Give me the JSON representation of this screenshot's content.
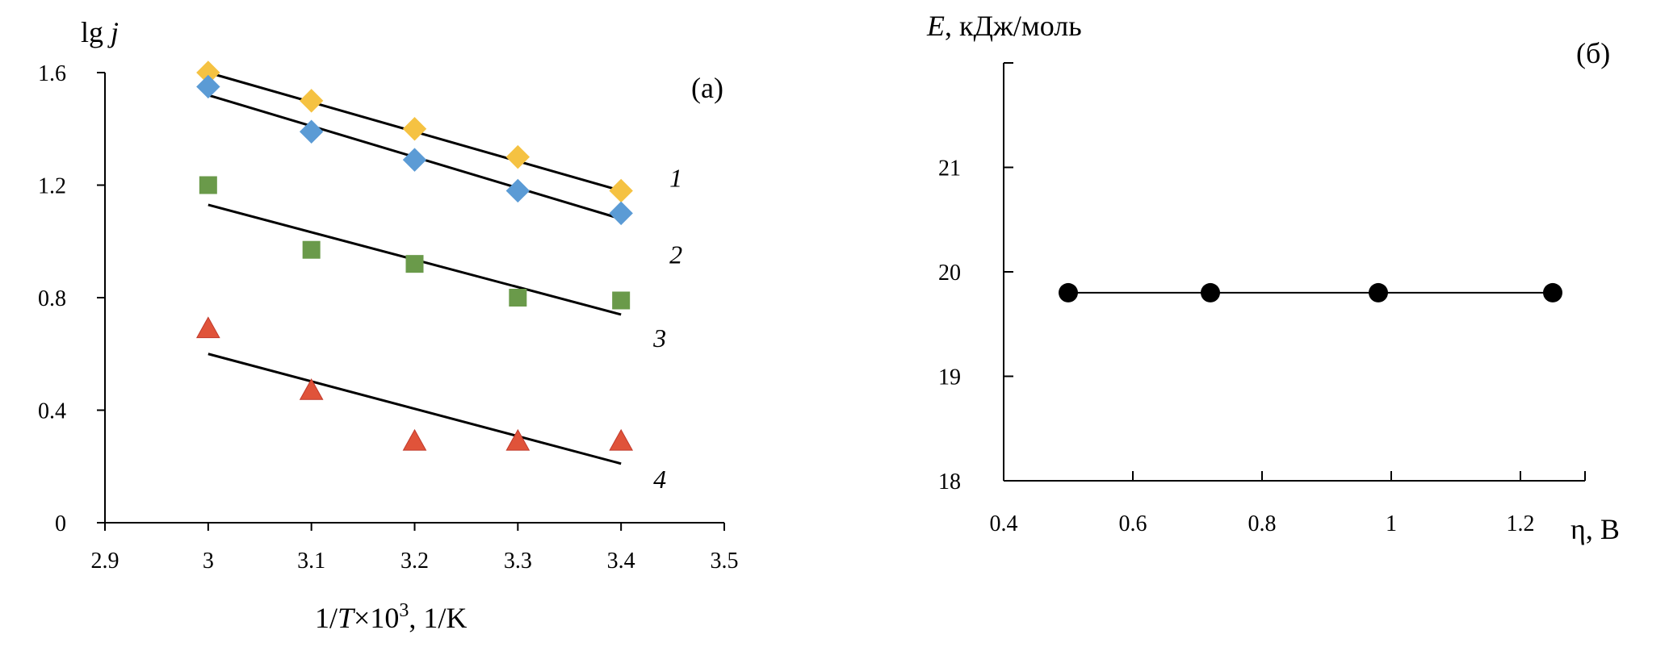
{
  "chart_data": [
    {
      "type": "scatter",
      "panel_label": "(а)",
      "xlabel": {
        "pre": "1/",
        "italic": "T",
        "mid": "×10",
        "sup": "3",
        "post": ", 1/K"
      },
      "ylabel": {
        "pre": "lg  ",
        "italic": "j"
      },
      "xlim": [
        2.9,
        3.5
      ],
      "ylim": [
        0,
        1.6
      ],
      "xticks": [
        "2.9",
        "3",
        "3.1",
        "3.2",
        "3.3",
        "3.4",
        "3.5"
      ],
      "yticks": [
        "0",
        "0.4",
        "0.8",
        "1.2",
        "1.6"
      ],
      "series": [
        {
          "label": "1",
          "marker": "diamond",
          "color": "#f5c242",
          "x": [
            3.0,
            3.1,
            3.2,
            3.3,
            3.4
          ],
          "y": [
            1.6,
            1.5,
            1.4,
            1.3,
            1.18
          ],
          "fit": [
            [
              3.0,
              1.6
            ],
            [
              3.4,
              1.18
            ]
          ]
        },
        {
          "label": "2",
          "marker": "diamond",
          "color": "#5b9bd5",
          "x": [
            3.0,
            3.1,
            3.2,
            3.3,
            3.4
          ],
          "y": [
            1.55,
            1.39,
            1.29,
            1.18,
            1.1
          ],
          "fit": [
            [
              3.0,
              1.52
            ],
            [
              3.4,
              1.08
            ]
          ]
        },
        {
          "label": "3",
          "marker": "square",
          "color": "#6a9a4a",
          "x": [
            3.0,
            3.1,
            3.2,
            3.3,
            3.4
          ],
          "y": [
            1.2,
            0.97,
            0.92,
            0.8,
            0.79
          ],
          "fit": [
            [
              3.0,
              1.13
            ],
            [
              3.4,
              0.74
            ]
          ]
        },
        {
          "label": "4",
          "marker": "triangle",
          "color": "#e0533a",
          "x": [
            3.0,
            3.1,
            3.2,
            3.3,
            3.4
          ],
          "y": [
            0.69,
            0.47,
            0.29,
            0.29,
            0.29
          ],
          "fit": [
            [
              3.0,
              0.6
            ],
            [
              3.4,
              0.21
            ]
          ]
        }
      ]
    },
    {
      "type": "line",
      "panel_label": "(б)",
      "xlabel": "η, В",
      "ylabel": {
        "italic": "E",
        "post": ", кДж/моль"
      },
      "xlim": [
        0.4,
        1.3
      ],
      "ylim": [
        18,
        22
      ],
      "xticks": [
        "0.4",
        "0.6",
        "0.8",
        "1",
        "1.2"
      ],
      "yticks": [
        "18",
        "19",
        "20",
        "21"
      ],
      "series": [
        {
          "marker": "circle",
          "color": "#000000",
          "x": [
            0.5,
            0.72,
            0.98,
            1.25
          ],
          "y": [
            19.8,
            19.8,
            19.8,
            19.8
          ]
        }
      ]
    }
  ]
}
